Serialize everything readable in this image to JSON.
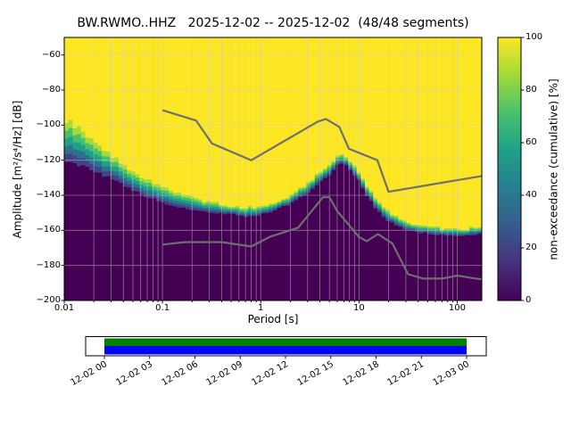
{
  "title": "BW.RWMO..HHZ   2025-12-02 -- 2025-12-02  (48/48 segments)",
  "axes": {
    "xlabel": "Period [s]",
    "ylabel": "Amplitude [m²/s⁴/Hz] [dB]",
    "x_tick_labels": [
      "0.01",
      "0.1",
      "1",
      "10",
      "100"
    ],
    "x_tick_values": [
      0.01,
      0.1,
      1,
      10,
      100
    ],
    "y_tick_labels": [
      "−60",
      "−80",
      "−100",
      "−120",
      "−140",
      "−160",
      "−180",
      "−200"
    ],
    "y_tick_values": [
      -60,
      -80,
      -100,
      -120,
      -140,
      -160,
      -180,
      -200
    ],
    "xlim": [
      0.01,
      178
    ],
    "ylim": [
      -200,
      -50
    ]
  },
  "colorbar": {
    "label": "non-exceedance (cumulative) [%]",
    "tick_labels": [
      "0",
      "20",
      "40",
      "60",
      "80",
      "100"
    ],
    "tick_values": [
      0,
      20,
      40,
      60,
      80,
      100
    ],
    "colormap": "viridis",
    "stops": [
      "#440154",
      "#46327e",
      "#365c8d",
      "#277f8e",
      "#1fa187",
      "#4ac16d",
      "#a0da39",
      "#fde725"
    ]
  },
  "chart_data": {
    "type": "heatmap",
    "title": "BW.RWMO..HHZ   2025-12-02 -- 2025-12-02  (48/48 segments)",
    "xlabel": "Period [s]",
    "ylabel": "Amplitude [m²/s⁴/Hz] [dB]",
    "colorbar_label": "non-exceedance (cumulative) [%]",
    "xlim": [
      0.01,
      178
    ],
    "ylim": [
      -200,
      -50
    ],
    "clim": [
      0,
      100
    ],
    "boundary": {
      "periods": [
        0.01,
        0.015,
        0.02,
        0.03,
        0.05,
        0.07,
        0.1,
        0.15,
        0.2,
        0.3,
        0.5,
        0.7,
        1,
        1.5,
        2,
        3,
        4,
        5,
        6,
        7,
        8,
        10,
        12,
        15,
        20,
        30,
        50,
        80,
        120,
        178
      ],
      "db_100": [
        -97,
        -103,
        -109,
        -117,
        -126,
        -131,
        -135,
        -139,
        -141,
        -144,
        -146,
        -147,
        -146,
        -143,
        -140,
        -133,
        -127,
        -122,
        -118,
        -117,
        -120,
        -127,
        -134,
        -142,
        -149,
        -155,
        -158,
        -159,
        -159,
        -158
      ],
      "db_0": [
        -120,
        -123,
        -126,
        -131,
        -137,
        -141,
        -144,
        -147,
        -148,
        -150,
        -151,
        -152,
        -151,
        -148,
        -145,
        -139,
        -133,
        -128,
        -123,
        -122,
        -125,
        -132,
        -140,
        -148,
        -155,
        -160,
        -162,
        -163,
        -163,
        -162
      ]
    },
    "noise_models": {
      "high": {
        "periods": [
          0.1,
          0.22,
          0.32,
          0.8,
          3.8,
          4.6,
          6.3,
          7.9,
          15.4,
          20,
          178
        ],
        "db": [
          -91.5,
          -97.4,
          -110.5,
          -120,
          -98,
          -96.5,
          -101,
          -113.5,
          -120,
          -138,
          -129
        ]
      },
      "low": {
        "periods": [
          0.1,
          0.17,
          0.4,
          0.8,
          1.24,
          2.4,
          4.3,
          5,
          6,
          10,
          12,
          15.6,
          21.9,
          31.6,
          45,
          70,
          101,
          154,
          178
        ],
        "db": [
          -168.1,
          -166.7,
          -166.7,
          -169.2,
          -163.7,
          -158.5,
          -141.1,
          -141.1,
          -149,
          -163.8,
          -166.2,
          -162.1,
          -167.5,
          -185,
          -187.5,
          -187.5,
          -185.8,
          -187.5,
          -187.9
        ]
      }
    }
  },
  "timeline": {
    "labels": [
      "12-02 00",
      "12-02 03",
      "12-02 06",
      "12-02 09",
      "12-02 12",
      "12-02 15",
      "12-02 18",
      "12-02 21",
      "12-03 00"
    ],
    "bar_colors": {
      "top": "#008000",
      "bottom": "#0000ff"
    }
  },
  "colors": {
    "cmap_max": "#fde725",
    "cmap_min": "#440154",
    "transition": [
      "#a5db36",
      "#46c06f",
      "#1fa187",
      "#2c718e",
      "#414287"
    ],
    "noise_model_line": "#6f6f6f",
    "grid": "#c9c9c9"
  }
}
